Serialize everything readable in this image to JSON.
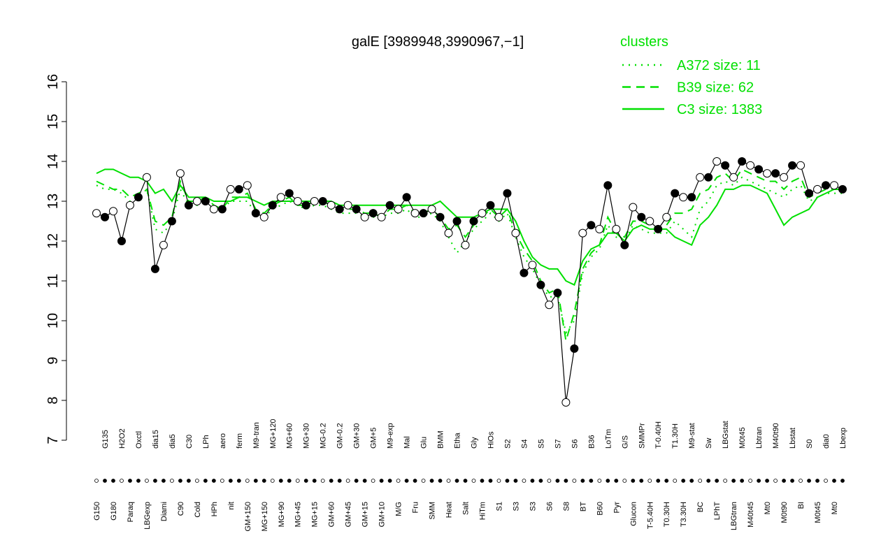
{
  "chart_data": {
    "type": "line",
    "title": "galE [3989948,3990967,−1]",
    "legend_title": "clusters",
    "legend_color": "#00e000",
    "ylim": [
      7,
      16
    ],
    "yticks": [
      7,
      8,
      9,
      10,
      11,
      12,
      13,
      14,
      15,
      16
    ],
    "color": "#000000",
    "categories": [
      "G150",
      "G135",
      "G180",
      "H2O2",
      "Paraq",
      "Oxctl",
      "LBGexp",
      "dia15",
      "Diami",
      "dia5",
      "C90",
      "C30",
      "Cold",
      "LPh",
      "HPh",
      "aero",
      "nit",
      "ferm",
      "GM+150",
      "M9-tran",
      "MG+150",
      "MG+120",
      "MG+90",
      "MG+60",
      "MG+45",
      "MG+30",
      "MG+15",
      "MG-0.2",
      "GM+60",
      "GM-0.2",
      "GM+45",
      "GM+30",
      "GM+15",
      "GM+5",
      "GM+10",
      "M9-exp",
      "M/G",
      "Mal",
      "Fru",
      "Glu",
      "SMM",
      "BMM",
      "Heat",
      "Etha",
      "Salt",
      "Gly",
      "HiTm",
      "HiOs",
      "S1",
      "S2",
      "S3",
      "S4",
      "S3",
      "S5",
      "S6",
      "S7",
      "S8",
      "S6",
      "BT",
      "B36",
      "B60",
      "LoTm",
      "Pyr",
      "G/S",
      "Glucon",
      "SMMPr",
      "T-5.40H",
      "T-0.40H",
      "T0.30H",
      "T1.30H",
      "T3.30H",
      "M9-stat",
      "BC",
      "Sw",
      "LPhT",
      "LBGstat",
      "LBGtran",
      "M0t45",
      "M40t45",
      "Lbtran",
      "Mt0",
      "M40t90",
      "M0t90",
      "Lbstat",
      "BI",
      "S0",
      "M0t45",
      "dia0",
      "Mt0",
      "Lbexp"
    ],
    "values": [
      12.7,
      12.6,
      12.75,
      12.0,
      12.9,
      13.1,
      13.6,
      11.3,
      11.9,
      12.5,
      13.7,
      12.9,
      13.0,
      13.0,
      12.8,
      12.8,
      13.3,
      13.3,
      13.4,
      12.7,
      12.6,
      12.9,
      13.1,
      13.2,
      13.0,
      12.9,
      13.0,
      13.0,
      12.9,
      12.8,
      12.9,
      12.8,
      12.6,
      12.7,
      12.6,
      12.9,
      12.8,
      13.1,
      12.7,
      12.7,
      12.8,
      12.6,
      12.2,
      12.5,
      11.9,
      12.5,
      12.7,
      12.9,
      12.6,
      13.2,
      12.2,
      11.2,
      11.4,
      10.9,
      10.4,
      10.7,
      7.95,
      9.3,
      12.2,
      12.4,
      12.3,
      13.4,
      12.3,
      11.9,
      12.85,
      12.6,
      12.5,
      12.3,
      12.6,
      13.2,
      13.1,
      13.1,
      13.6,
      13.6,
      14.0,
      13.9,
      13.6,
      14.0,
      13.9,
      13.8,
      13.7,
      13.7,
      13.6,
      13.9,
      13.9,
      13.2,
      13.3,
      13.4,
      13.4,
      13.3
    ],
    "series": [
      {
        "name": "A372 size: 11",
        "color": "#00e000",
        "dash": "dotted",
        "values": [
          13.4,
          13.3,
          13.3,
          13.2,
          13.0,
          13.1,
          13.3,
          12.3,
          12.2,
          12.5,
          13.3,
          12.9,
          12.9,
          13.0,
          12.8,
          12.8,
          13.0,
          13.0,
          13.0,
          12.7,
          12.6,
          12.8,
          12.9,
          13.0,
          12.9,
          12.8,
          12.9,
          12.9,
          12.8,
          12.7,
          12.7,
          12.7,
          12.6,
          12.6,
          12.6,
          12.7,
          12.7,
          12.8,
          12.6,
          12.6,
          12.7,
          12.5,
          12.1,
          11.7,
          12.0,
          12.3,
          12.5,
          12.7,
          12.5,
          12.7,
          12.1,
          11.6,
          11.3,
          10.9,
          10.6,
          10.6,
          9.7,
          10.0,
          11.2,
          11.6,
          11.8,
          12.4,
          12.1,
          12.0,
          12.4,
          12.3,
          12.2,
          12.2,
          12.2,
          12.5,
          12.3,
          12.1,
          12.8,
          13.0,
          13.4,
          13.5,
          13.4,
          13.6,
          13.5,
          13.4,
          13.3,
          13.2,
          13.1,
          13.3,
          13.4,
          13.0,
          13.1,
          13.2,
          13.2,
          13.2
        ]
      },
      {
        "name": "B39 size: 62",
        "color": "#00e000",
        "dash": "dashed",
        "values": [
          13.5,
          13.4,
          13.3,
          13.3,
          13.1,
          13.2,
          13.3,
          12.5,
          12.4,
          12.6,
          13.5,
          13.0,
          13.0,
          13.1,
          12.9,
          12.8,
          13.1,
          13.1,
          13.2,
          12.8,
          12.7,
          12.9,
          13.0,
          13.1,
          12.9,
          12.9,
          13.0,
          13.0,
          12.9,
          12.8,
          12.8,
          12.8,
          12.7,
          12.7,
          12.6,
          12.8,
          12.8,
          12.9,
          12.7,
          12.7,
          12.8,
          12.6,
          12.3,
          12.4,
          12.1,
          12.4,
          12.6,
          12.8,
          12.6,
          12.8,
          12.2,
          11.8,
          11.5,
          11.0,
          10.7,
          10.8,
          9.5,
          10.2,
          11.3,
          11.7,
          11.9,
          12.6,
          12.2,
          12.1,
          12.5,
          12.5,
          12.4,
          12.3,
          12.4,
          12.7,
          12.7,
          12.8,
          13.2,
          13.3,
          13.6,
          13.7,
          13.5,
          13.8,
          13.7,
          13.6,
          13.5,
          13.5,
          13.3,
          13.5,
          13.6,
          13.1,
          13.2,
          13.3,
          13.3,
          13.3
        ]
      },
      {
        "name": "C3 size: 1383",
        "color": "#00e000",
        "dash": "solid",
        "values": [
          13.7,
          13.8,
          13.8,
          13.7,
          13.6,
          13.6,
          13.5,
          13.2,
          13.3,
          13.0,
          13.4,
          13.1,
          13.1,
          13.1,
          13.0,
          13.0,
          13.0,
          13.1,
          13.1,
          13.0,
          12.9,
          13.0,
          13.0,
          13.0,
          13.0,
          13.0,
          13.0,
          13.0,
          13.0,
          12.9,
          12.9,
          12.9,
          12.9,
          12.9,
          12.9,
          12.9,
          12.9,
          12.9,
          12.9,
          12.9,
          12.9,
          13.0,
          12.8,
          12.6,
          12.6,
          12.6,
          12.7,
          12.8,
          12.8,
          12.8,
          12.5,
          12.0,
          11.6,
          11.4,
          11.3,
          11.3,
          11.0,
          10.9,
          11.5,
          11.8,
          11.9,
          12.2,
          12.2,
          12.0,
          12.3,
          12.4,
          12.3,
          12.3,
          12.3,
          12.1,
          12.0,
          11.9,
          12.4,
          12.6,
          12.9,
          13.3,
          13.3,
          13.4,
          13.4,
          13.3,
          13.2,
          12.8,
          12.4,
          12.6,
          12.7,
          12.8,
          13.1,
          13.2,
          13.3,
          13.3
        ]
      }
    ]
  }
}
